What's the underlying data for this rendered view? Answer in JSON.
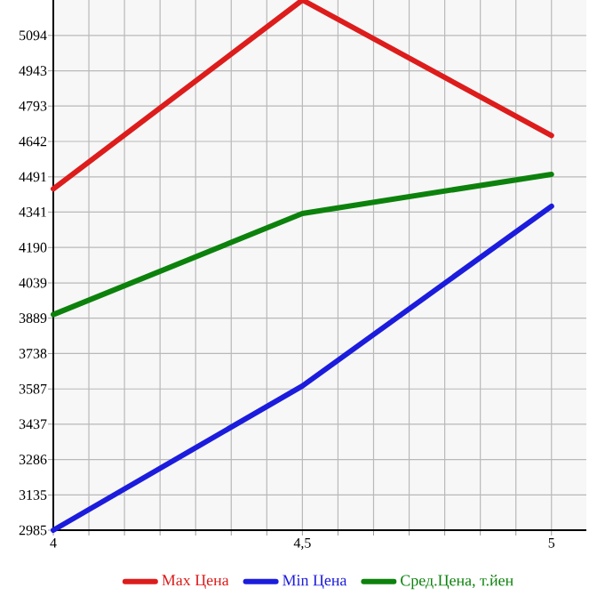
{
  "chart_data": {
    "type": "line",
    "x": [
      4,
      4.5,
      5
    ],
    "xlim": [
      4,
      5.07
    ],
    "xticks": [
      4,
      {
        "value": 4.5,
        "label": "4,5"
      },
      5
    ],
    "ylim": [
      2985,
      5245
    ],
    "yticks": [
      2985,
      3135,
      3286,
      3437,
      3587,
      3738,
      3889,
      4039,
      4190,
      4341,
      4491,
      4642,
      4793,
      4943,
      5094
    ],
    "grid": true,
    "legend": "bottom",
    "marker": "none",
    "line_style": "solid",
    "series": [
      {
        "name": "Max Цена",
        "color": "#dd1c1c",
        "values": [
          4440,
          5245,
          4667
        ]
      },
      {
        "name": "Min Цена",
        "color": "#1c1cdd",
        "values": [
          2985,
          3600,
          4366
        ]
      },
      {
        "name": "Сред.Цена, т.йен",
        "color": "#0c820c",
        "values": [
          3904,
          4335,
          4502
        ]
      }
    ]
  }
}
